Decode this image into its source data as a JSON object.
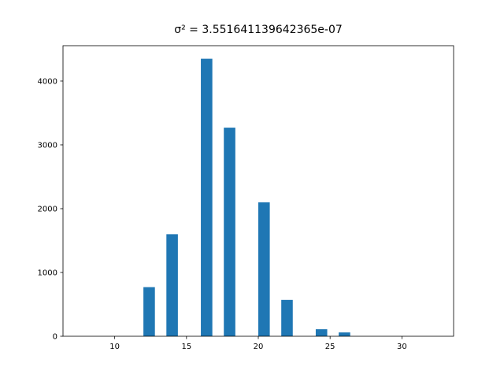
{
  "chart_data": {
    "type": "histogram",
    "title": "σ² = 3.551641139642365e-07",
    "bins": [
      8,
      8.8,
      9.6,
      10.4,
      11.2,
      12,
      12.8,
      13.6,
      14.4,
      15.2,
      16,
      16.8,
      17.6,
      18.4,
      19.2,
      20,
      20.8,
      21.6,
      22.4,
      23.2,
      24,
      24.8,
      25.6,
      26.4,
      27.2,
      28,
      28.8,
      29.6,
      30.4,
      31.2,
      32
    ],
    "counts": [
      0,
      0,
      0,
      0,
      0,
      770,
      0,
      1600,
      0,
      0,
      4350,
      0,
      3270,
      0,
      0,
      2100,
      0,
      570,
      0,
      0,
      110,
      0,
      60,
      0,
      0,
      0,
      0,
      0,
      0,
      0
    ],
    "color": "#1f77b4",
    "xlim": [
      6.4,
      33.6
    ],
    "xticks": [
      10,
      15,
      20,
      25,
      30
    ],
    "ylim": [
      0,
      4555
    ],
    "yticks": [
      0,
      1000,
      2000,
      3000,
      4000
    ]
  }
}
